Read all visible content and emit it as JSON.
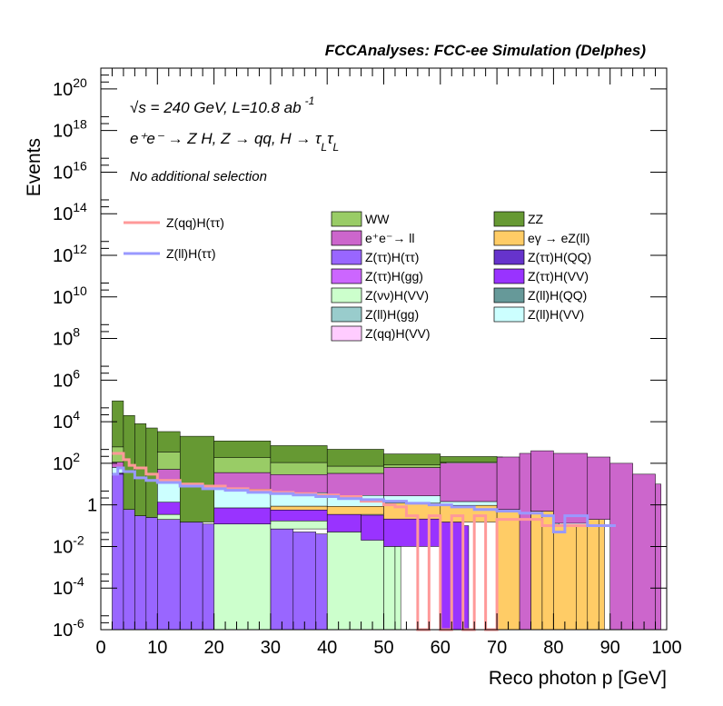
{
  "chart_data": {
    "type": "bar",
    "title": "FCCAnalyses: FCC-ee Simulation (Delphes)",
    "xlabel": "Reco photon p [GeV]",
    "ylabel": "Events",
    "xlim": [
      0,
      100
    ],
    "ylim": [
      1e-06,
      1e+21
    ],
    "log_y": true,
    "grid": false,
    "annotations": {
      "energy": "√s = 240 GeV, L=10.8 ab",
      "lumi_exp": "-1",
      "process": "e⁺e⁻ → Z H, Z → qq, H → τ",
      "tau_sub": "L",
      "tau2": "τ",
      "tau2_sub": "L",
      "selection": "No additional selection"
    },
    "x_ticks": [
      "0",
      "10",
      "20",
      "30",
      "40",
      "50",
      "60",
      "70",
      "80",
      "90",
      "100"
    ],
    "y_ticks": [
      {
        "base": "10",
        "exp": "-6",
        "value": 1e-06
      },
      {
        "base": "10",
        "exp": "-4",
        "value": 0.0001
      },
      {
        "base": "10",
        "exp": "-2",
        "value": 0.01
      },
      {
        "base": "1",
        "exp": "",
        "value": 1
      },
      {
        "base": "10",
        "exp": "2",
        "value": 100.0
      },
      {
        "base": "10",
        "exp": "4",
        "value": 10000.0
      },
      {
        "base": "10",
        "exp": "6",
        "value": 1000000.0
      },
      {
        "base": "10",
        "exp": "8",
        "value": 100000000.0
      },
      {
        "base": "10",
        "exp": "10",
        "value": 10000000000.0
      },
      {
        "base": "10",
        "exp": "12",
        "value": 1000000000000.0
      },
      {
        "base": "10",
        "exp": "14",
        "value": 100000000000000.0
      },
      {
        "base": "10",
        "exp": "16",
        "value": 1e+16
      },
      {
        "base": "10",
        "exp": "18",
        "value": 1e+18
      },
      {
        "base": "10",
        "exp": "20",
        "value": 1e+20
      }
    ],
    "bin_width": 1,
    "stacked_totals": {
      "description_x": "bin lower edges in GeV",
      "x": [
        2,
        3,
        4,
        5,
        6,
        7,
        8,
        9,
        10,
        12,
        14,
        16,
        18,
        20,
        22,
        24,
        26,
        28,
        30,
        32,
        34,
        36,
        38,
        40,
        42,
        44,
        46,
        48,
        50,
        52,
        54,
        56,
        58,
        60,
        62,
        64,
        66,
        68,
        70,
        72,
        74,
        76,
        78,
        80,
        82,
        84,
        86,
        88,
        90,
        92,
        94,
        96,
        98
      ]
    },
    "series": [
      {
        "name": "Z(ττ)H(ττ)",
        "color": "#9966ff",
        "x": [
          2,
          4,
          6,
          8,
          10,
          14,
          18,
          22,
          26,
          30,
          34,
          38,
          42,
          44,
          46
        ],
        "values": [
          30,
          0.6,
          0.3,
          0.25,
          0.2,
          0.15,
          0.12,
          0.1,
          0.09,
          0.07,
          0.05,
          0.04,
          0.03,
          0.02,
          0.02
        ]
      },
      {
        "name": "Z(νν)H(VV)",
        "color": "#ccffcc",
        "x": [
          2,
          10,
          20,
          30,
          40,
          50,
          52
        ],
        "values": [
          0.6,
          0.15,
          0.12,
          0.1,
          0.05,
          0.01,
          0.01
        ]
      },
      {
        "name": "Z(ττ)H(VV)",
        "color": "#9933ff",
        "x": [
          2,
          10,
          20,
          30,
          40,
          46,
          50,
          60,
          64
        ],
        "values": [
          3,
          1,
          0.6,
          0.4,
          0.3,
          0.3,
          0.2,
          0.15,
          0.1
        ]
      },
      {
        "name": "eγ → eZ(ll)",
        "color": "#ffcc66",
        "x": [
          30,
          40,
          50,
          60,
          70,
          76,
          78,
          80,
          84,
          86,
          88
        ],
        "values": [
          0.3,
          0.5,
          1,
          0.8,
          0.6,
          0.5,
          0.5,
          0.1,
          0.1,
          0.2,
          0.3
        ]
      },
      {
        "name": "Z(ll)H(VV)",
        "color": "#ccffff",
        "x": [
          2,
          10,
          20,
          30,
          40,
          50,
          60,
          80
        ],
        "values": [
          30,
          10,
          5,
          3,
          2,
          1.5,
          0.5,
          0.03
        ]
      },
      {
        "name": "e⁺e⁻→ ll",
        "color": "#cc66cc",
        "x": [
          2,
          10,
          20,
          30,
          40,
          50,
          60,
          70,
          74,
          76,
          80,
          86,
          90,
          94,
          98
        ],
        "values": [
          50,
          40,
          30,
          25,
          30,
          60,
          100,
          200,
          300,
          400,
          300,
          200,
          100,
          30,
          10
        ]
      },
      {
        "name": "WW",
        "color": "#99cc66",
        "x": [
          2,
          10,
          20,
          30,
          40,
          50,
          60
        ],
        "values": [
          500,
          300,
          150,
          80,
          40,
          20,
          10
        ]
      },
      {
        "name": "ZZ",
        "color": "#669933",
        "x": [
          2,
          4,
          6,
          8,
          10,
          14,
          20,
          30,
          40,
          50,
          60,
          70
        ],
        "values": [
          100000,
          20000,
          8000,
          5000,
          3000,
          2000,
          1000,
          600,
          400,
          200,
          100,
          0.1
        ]
      },
      {
        "name": "Z(ττ)H(QQ)",
        "color": "#6633cc",
        "x": [],
        "values": []
      },
      {
        "name": "Z(ττ)H(gg)",
        "color": "#cc66ff",
        "x": [],
        "values": []
      },
      {
        "name": "Z(ll)H(QQ)",
        "color": "#669999",
        "x": [],
        "values": []
      },
      {
        "name": "Z(ll)H(gg)",
        "color": "#99cccc",
        "x": [],
        "values": []
      },
      {
        "name": "Z(qq)H(VV)",
        "color": "#ffccff",
        "x": [],
        "values": []
      }
    ],
    "signal_lines": [
      {
        "name": "Z(qq)H(ττ)",
        "color": "#ff9999",
        "x": [
          2,
          3,
          4,
          5,
          6,
          8,
          10,
          14,
          18,
          22,
          26,
          30,
          34,
          38,
          42,
          46,
          50,
          52,
          54,
          56,
          58,
          60,
          62,
          64,
          66,
          68,
          70,
          72,
          74,
          76,
          78,
          80,
          82,
          84,
          86,
          88,
          90
        ],
        "values": [
          300,
          300,
          150,
          80,
          60,
          30,
          15,
          10,
          8,
          6,
          5,
          4,
          3.5,
          3,
          2.5,
          1.5,
          1,
          0.8,
          0.3,
          1e-06,
          0.3,
          1e-06,
          0.3,
          1e-06,
          0.3,
          1e-06,
          0.2,
          0.2,
          0.2,
          0.2,
          0.1,
          0.1,
          0.1,
          0.1,
          0.1,
          0.1,
          0.1
        ]
      },
      {
        "name": "Z(ll)H(ττ)",
        "color": "#9999ff",
        "x": [
          2,
          3,
          4,
          6,
          8,
          10,
          14,
          18,
          22,
          26,
          30,
          34,
          38,
          42,
          46,
          50,
          54,
          58,
          62,
          66,
          70,
          74,
          78,
          80,
          82,
          86,
          90
        ],
        "values": [
          30,
          60,
          40,
          20,
          15,
          12,
          8,
          6,
          5,
          4,
          3.5,
          3,
          2.5,
          2,
          1.8,
          1.5,
          1.2,
          1,
          0.8,
          0.6,
          0.5,
          0.4,
          0.3,
          0.05,
          0.3,
          0.1,
          0.1
        ]
      }
    ],
    "legend": {
      "placement": "top",
      "lines": [
        {
          "label": "Z(qq)H(ττ)",
          "color": "#ff9999"
        },
        {
          "label": "Z(ll)H(ττ)",
          "color": "#9999ff"
        }
      ],
      "boxes": [
        {
          "label": "WW",
          "color": "#99cc66"
        },
        {
          "label": "ZZ",
          "color": "#669933"
        },
        {
          "label": "e⁺e⁻→ ll",
          "color": "#cc66cc"
        },
        {
          "label": "eγ → eZ(ll)",
          "color": "#ffcc66"
        },
        {
          "label": "Z(ττ)H(ττ)",
          "color": "#9966ff"
        },
        {
          "label": "Z(ττ)H(QQ)",
          "color": "#6633cc"
        },
        {
          "label": "Z(ττ)H(gg)",
          "color": "#cc66ff"
        },
        {
          "label": "Z(ττ)H(VV)",
          "color": "#9933ff"
        },
        {
          "label": "Z(νν)H(VV)",
          "color": "#ccffcc"
        },
        {
          "label": "Z(ll)H(QQ)",
          "color": "#669999"
        },
        {
          "label": "Z(ll)H(gg)",
          "color": "#99cccc"
        },
        {
          "label": "Z(ll)H(VV)",
          "color": "#ccffff"
        },
        {
          "label": "Z(qq)H(VV)",
          "color": "#ffccff"
        }
      ]
    }
  }
}
